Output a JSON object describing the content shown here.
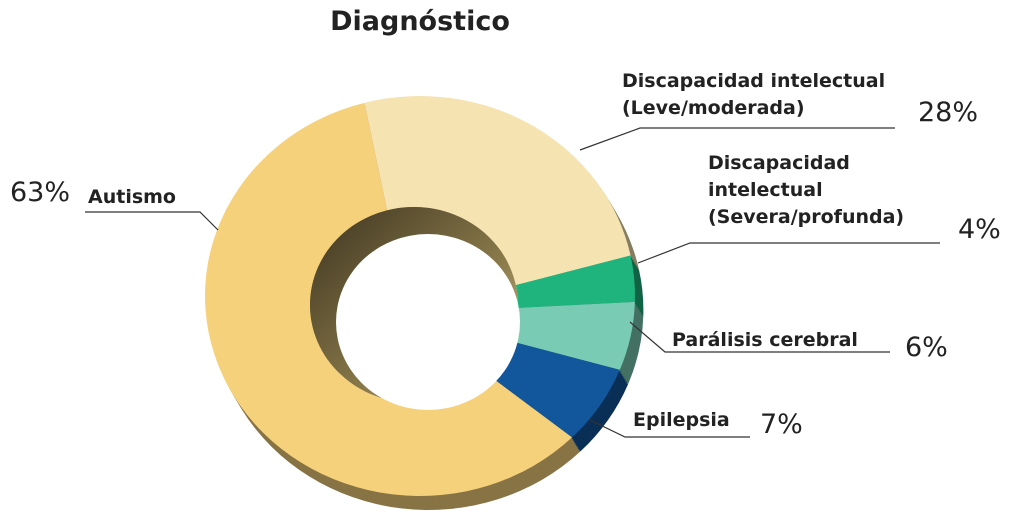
{
  "chart_data": {
    "type": "donut",
    "title": "Diagnóstico",
    "categories": [
      "Discapacidad intelectual (Leve/moderada)",
      "Discapacidad intelectual (Severa/profunda)",
      "Parálisis cerebral",
      "Epilepsia",
      "Autismo"
    ],
    "values": [
      28,
      4,
      6,
      7,
      63
    ],
    "value_labels": [
      "28%",
      "4%",
      "6%",
      "7%",
      "63%"
    ],
    "colors": [
      "#f6e3b2",
      "#1fb47e",
      "#7acbb4",
      "#12569c",
      "#f6d17b"
    ]
  }
}
